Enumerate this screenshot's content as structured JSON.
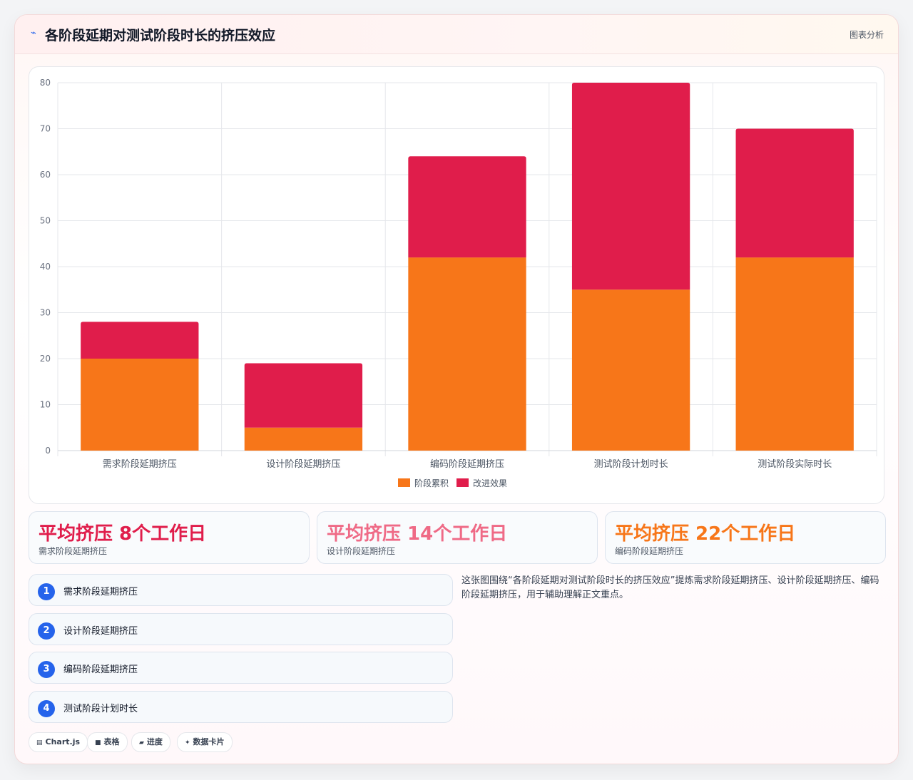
{
  "header": {
    "icon": "chart-line-icon",
    "title": "各阶段延期对测试阶段时长的挤压效应",
    "right_label": "图表分析"
  },
  "chart_data": {
    "type": "bar",
    "stacked": true,
    "categories": [
      "需求阶段延期挤压",
      "设计阶段延期挤压",
      "编码阶段延期挤压",
      "测试阶段计划时长",
      "测试阶段实际时长"
    ],
    "series": [
      {
        "name": "阶段累积",
        "color": "#f77619",
        "values": [
          20,
          5,
          42,
          35,
          42
        ]
      },
      {
        "name": "改进效果",
        "color": "#e01d4b",
        "values": [
          8,
          14,
          22,
          45,
          28
        ]
      }
    ],
    "ylim": [
      0,
      80
    ],
    "yticks": [
      0,
      10,
      20,
      30,
      40,
      50,
      60,
      70,
      80
    ],
    "grid": true,
    "legend": "bottom"
  },
  "stats": [
    {
      "value": "平均挤压 8个工作日",
      "label": "需求阶段延期挤压",
      "color": "#e01d4b"
    },
    {
      "value": "平均挤压 14个工作日",
      "label": "设计阶段延期挤压",
      "color": "#ef6a86"
    },
    {
      "value": "平均挤压 22个工作日",
      "label": "编码阶段延期挤压",
      "color": "#f77619"
    }
  ],
  "list": [
    {
      "num": "1",
      "label": "需求阶段延期挤压"
    },
    {
      "num": "2",
      "label": "设计阶段延期挤压"
    },
    {
      "num": "3",
      "label": "编码阶段延期挤压"
    },
    {
      "num": "4",
      "label": "测试阶段计划时长"
    }
  ],
  "description": "这张图围绕“各阶段延期对测试阶段时长的挤压效应”提炼需求阶段延期挤压、设计阶段延期挤压、编码阶段延期挤压，用于辅助理解正文重点。",
  "tags": [
    {
      "icon": "chart-icon",
      "glyph": "▤",
      "label": "Chart.js"
    },
    {
      "icon": "table-icon",
      "glyph": "■",
      "label": "表格"
    },
    {
      "icon": "progress-icon",
      "glyph": "▰",
      "label": "进度"
    },
    {
      "icon": "sparkle-icon",
      "glyph": "✦",
      "label": "数据卡片"
    }
  ]
}
